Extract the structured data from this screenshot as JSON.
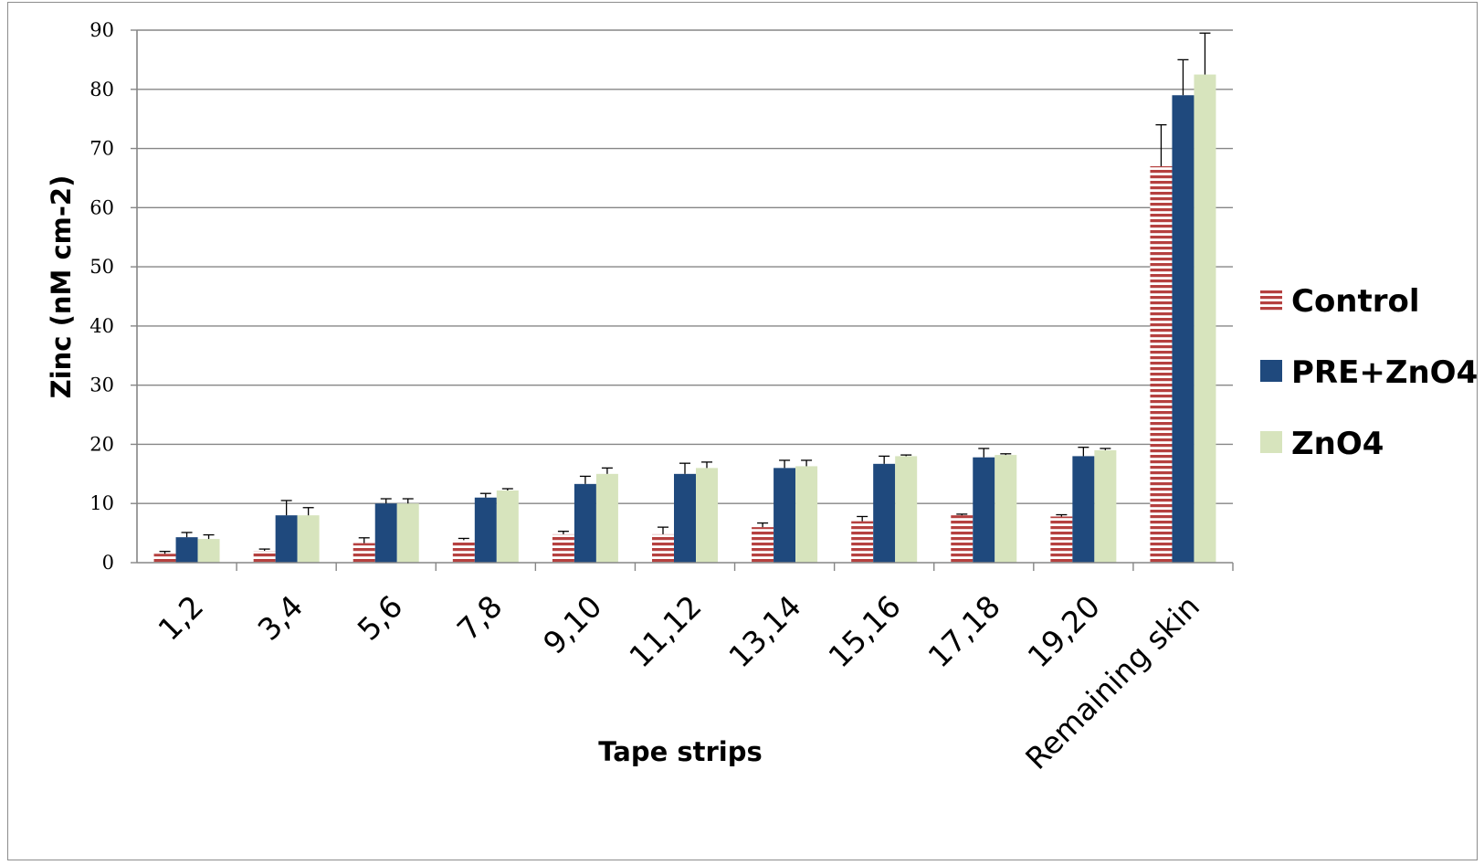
{
  "chart_data": {
    "type": "bar",
    "title": "",
    "xlabel": "Tape strips",
    "ylabel": "Zinc (nM cm-2)",
    "ylim": [
      0,
      90
    ],
    "yticks": [
      "0",
      "10",
      "20",
      "30",
      "40",
      "50",
      "60",
      "70",
      "80",
      "90"
    ],
    "grid": true,
    "legend_position": "right",
    "categories": [
      "1,2",
      "3,4",
      "5,6",
      "7,8",
      "9,10",
      "11,12",
      "13,14",
      "15,16",
      "17,18",
      "19,20",
      "Remaining skin"
    ],
    "series": [
      {
        "name": "Control",
        "color": "#b5403f",
        "pattern": "horizontal-stripes",
        "values": [
          1.5,
          2,
          3.3,
          3.8,
          4.8,
          4.8,
          6,
          7,
          8,
          7.8,
          67
        ],
        "errors": [
          0.4,
          0.3,
          0.9,
          0.3,
          0.5,
          1.2,
          0.7,
          0.8,
          0.2,
          0.3,
          7
        ]
      },
      {
        "name": "PRE+ZnO4",
        "color": "#1f497d",
        "pattern": "solid",
        "values": [
          4.3,
          8,
          10,
          11,
          13.3,
          15,
          16,
          16.7,
          17.8,
          18,
          79
        ],
        "errors": [
          0.8,
          2.5,
          0.8,
          0.7,
          1.3,
          1.8,
          1.3,
          1.3,
          1.5,
          1.5,
          6
        ]
      },
      {
        "name": "ZnO4",
        "color": "#d7e4bd",
        "pattern": "solid",
        "values": [
          4,
          8,
          10,
          12.2,
          15,
          16,
          16.3,
          18,
          18.2,
          19,
          82.5
        ],
        "errors": [
          0.7,
          1.3,
          0.8,
          0.3,
          1,
          1,
          1,
          0.2,
          0.2,
          0.3,
          7
        ]
      }
    ]
  }
}
